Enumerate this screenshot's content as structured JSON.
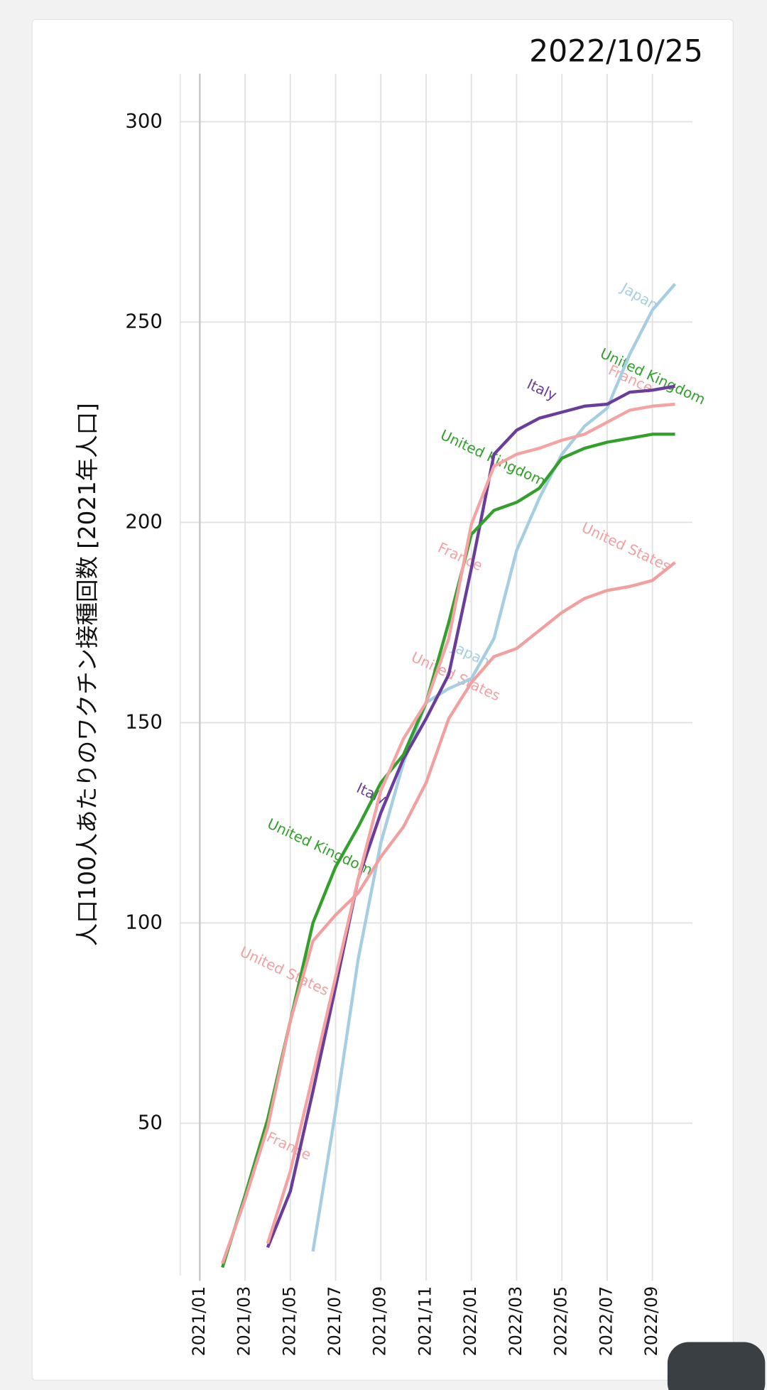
{
  "chart_data": {
    "type": "line",
    "title": "2022/10/25",
    "y_label": "人口100人あたりのワクチン接種回数 [2021年人口]",
    "categories": [
      "2021/01",
      null,
      "2021/03",
      null,
      "2021/05",
      null,
      "2021/07",
      null,
      "2021/09",
      null,
      "2021/11",
      null,
      "2022/01",
      null,
      "2022/03",
      null,
      "2022/05",
      null,
      "2022/07",
      null,
      "2022/09",
      null
    ],
    "series": [
      {
        "name": "Japan",
        "color": "#a6cee3",
        "values": [
          null,
          null,
          null,
          null,
          null,
          18,
          53,
          91,
          120,
          140,
          155,
          158.5,
          161,
          171,
          193,
          206,
          217,
          224,
          228.5,
          242,
          253,
          259.5
        ]
      },
      {
        "name": "Italy",
        "color": "#6a3d9a",
        "values": [
          null,
          null,
          null,
          19,
          33,
          58,
          84,
          111,
          127.5,
          141,
          151,
          162,
          188.5,
          217,
          223,
          226,
          227.5,
          229,
          229.5,
          232.5,
          233,
          234
        ]
      },
      {
        "name": "United Kingdom",
        "color": "#33a02c",
        "values": [
          null,
          14,
          32,
          51,
          75.5,
          100,
          114,
          124,
          135,
          142,
          155,
          175,
          197,
          203,
          205,
          208.5,
          216,
          218.5,
          220,
          221,
          222,
          222
        ]
      },
      {
        "name": "France",
        "color": "#f4a3a2",
        "values": [
          null,
          null,
          null,
          20,
          38,
          62,
          86.5,
          111,
          133,
          146,
          155,
          171,
          199.5,
          214,
          217,
          218.5,
          220.5,
          222,
          225,
          228,
          229,
          229.5
        ]
      },
      {
        "name": "United States",
        "color": "#f2a09f",
        "values": [
          null,
          15,
          31,
          49,
          75.5,
          95.5,
          102,
          107.5,
          116.5,
          124,
          135,
          151,
          160,
          166.5,
          168.5,
          173,
          177.5,
          181,
          183,
          184,
          185.5,
          190
        ]
      }
    ],
    "ylim": [
      12,
      312
    ],
    "yticks": [
      50,
      100,
      150,
      200,
      250,
      300
    ],
    "grid": true
  }
}
